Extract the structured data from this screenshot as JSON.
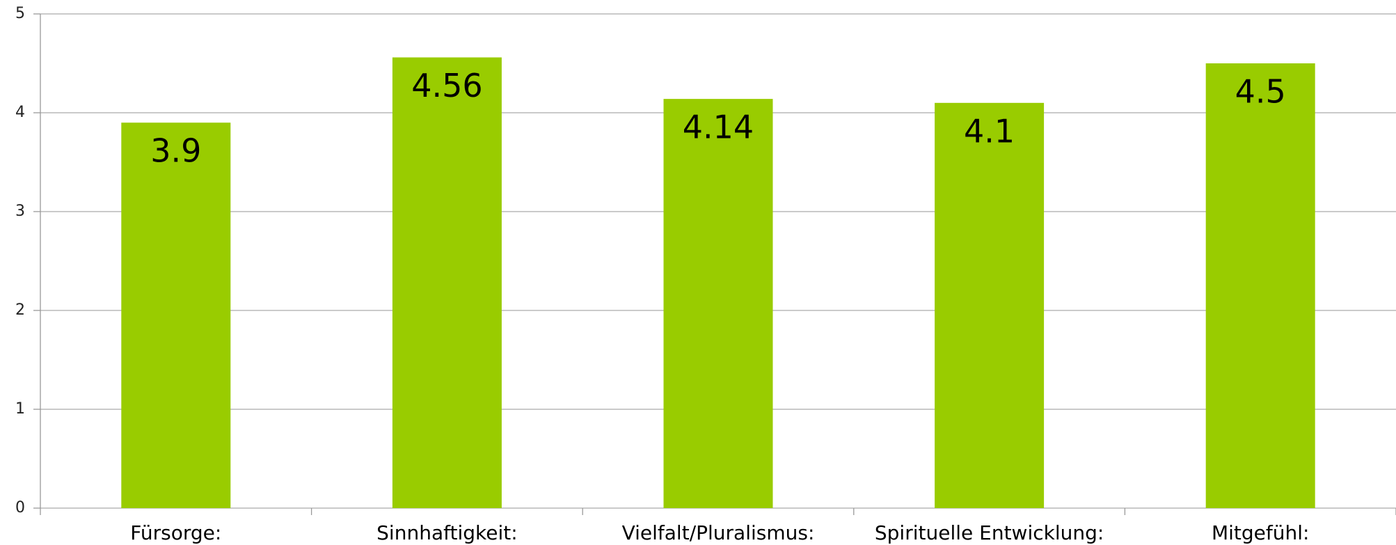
{
  "chart_data": {
    "type": "bar",
    "categories": [
      "Fürsorge:",
      "Sinnhaftigkeit:",
      "Vielfalt/Pluralismus:",
      "Spirituelle Entwicklung:",
      "Mitgefühl:"
    ],
    "values": [
      3.9,
      4.56,
      4.14,
      4.1,
      4.5
    ],
    "color": "#99cc00",
    "ylim": [
      0,
      5
    ],
    "yticks": [
      0,
      1,
      2,
      3,
      4,
      5
    ],
    "grid": true
  }
}
